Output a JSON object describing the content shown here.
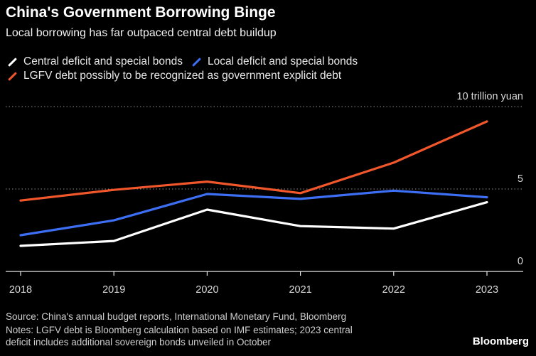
{
  "header": {
    "title": "China's Government Borrowing Binge",
    "subtitle": "Local borrowing has far outpaced central debt buildup"
  },
  "legend": [
    {
      "label": "Central deficit and special bonds",
      "color": "#ffffff"
    },
    {
      "label": "Local deficit and special bonds",
      "color": "#3d6ff5"
    },
    {
      "label": "LGFV debt possibly to be recognized as government explicit debt",
      "color": "#f2572b"
    }
  ],
  "chart_data": {
    "type": "line",
    "title": "China's Government Borrowing Binge",
    "subtitle": "Local borrowing has far outpaced central debt buildup",
    "x": [
      "2018",
      "2019",
      "2020",
      "2021",
      "2022",
      "2023"
    ],
    "series": [
      {
        "name": "Central deficit and special bonds",
        "color": "#ffffff",
        "values": [
          1.55,
          1.85,
          3.75,
          2.75,
          2.6,
          4.2
        ]
      },
      {
        "name": "Local deficit and special bonds",
        "color": "#3d6ff5",
        "values": [
          2.2,
          3.1,
          4.7,
          4.4,
          4.9,
          4.5
        ]
      },
      {
        "name": "LGFV debt possibly to be recognized as government explicit debt",
        "color": "#f2572b",
        "values": [
          4.3,
          4.95,
          5.45,
          4.75,
          6.6,
          9.1
        ]
      }
    ],
    "ylim": [
      0,
      10
    ],
    "yticks": [
      {
        "value": 10,
        "label": "10 trillion yuan"
      },
      {
        "value": 5,
        "label": "5"
      },
      {
        "value": 0,
        "label": "0"
      }
    ],
    "grid": true
  },
  "footer": {
    "source": "Source: China's annual budget reports, International Monetary Fund, Bloomberg",
    "notes_line1": "Notes: LGFV debt is Bloomberg calculation based on IMF estimates; 2023 central",
    "notes_line2": "deficit includes additional sovereign bonds unveiled in October",
    "brand": "Bloomberg"
  }
}
